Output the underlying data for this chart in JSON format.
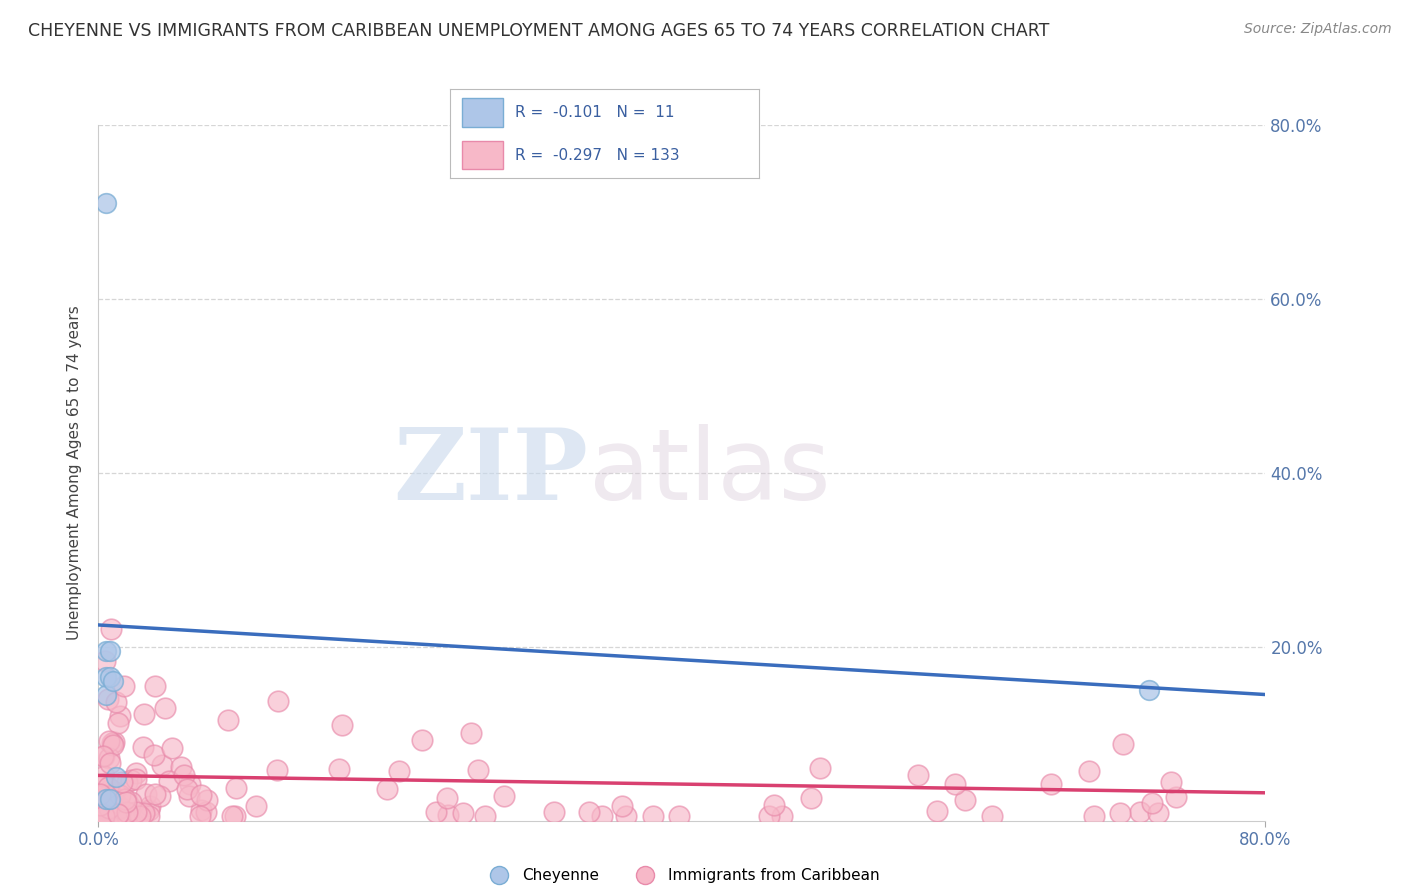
{
  "title": "CHEYENNE VS IMMIGRANTS FROM CARIBBEAN UNEMPLOYMENT AMONG AGES 65 TO 74 YEARS CORRELATION CHART",
  "source": "Source: ZipAtlas.com",
  "ylabel": "Unemployment Among Ages 65 to 74 years",
  "xlim": [
    0.0,
    0.8
  ],
  "ylim": [
    0.0,
    0.8
  ],
  "xticks": [
    0.0,
    0.8
  ],
  "yticks": [
    0.2,
    0.4,
    0.6,
    0.8
  ],
  "xticklabels": [
    "0.0%",
    "80.0%"
  ],
  "yticklabels": [
    "20.0%",
    "40.0%",
    "60.0%",
    "80.0%"
  ],
  "cheyenne_R": -0.101,
  "cheyenne_N": 11,
  "caribbean_R": -0.297,
  "caribbean_N": 133,
  "cheyenne_color": "#aec6e8",
  "cheyenne_edge": "#7aadd4",
  "caribbean_color": "#f7b8c8",
  "caribbean_edge": "#e88aaa",
  "trend_cheyenne_color": "#3a6dbd",
  "trend_caribbean_color": "#d94070",
  "background_color": "#ffffff",
  "grid_color": "#cccccc",
  "title_color": "#333333",
  "axis_color": "#5577aa",
  "legend_R_color": "#3a5fa0",
  "watermark_ZIP": "ZIP",
  "watermark_atlas": "atlas",
  "cheyenne_points_x": [
    0.005,
    0.005,
    0.005,
    0.005,
    0.005,
    0.008,
    0.008,
    0.008,
    0.01,
    0.012,
    0.72
  ],
  "cheyenne_points_y": [
    0.71,
    0.195,
    0.165,
    0.145,
    0.025,
    0.195,
    0.165,
    0.025,
    0.16,
    0.05,
    0.15
  ],
  "trend_chey_x0": 0.0,
  "trend_chey_y0": 0.225,
  "trend_chey_x1": 0.8,
  "trend_chey_y1": 0.145,
  "trend_car_x0": 0.0,
  "trend_car_y0": 0.052,
  "trend_car_x1": 0.8,
  "trend_car_y1": 0.032
}
